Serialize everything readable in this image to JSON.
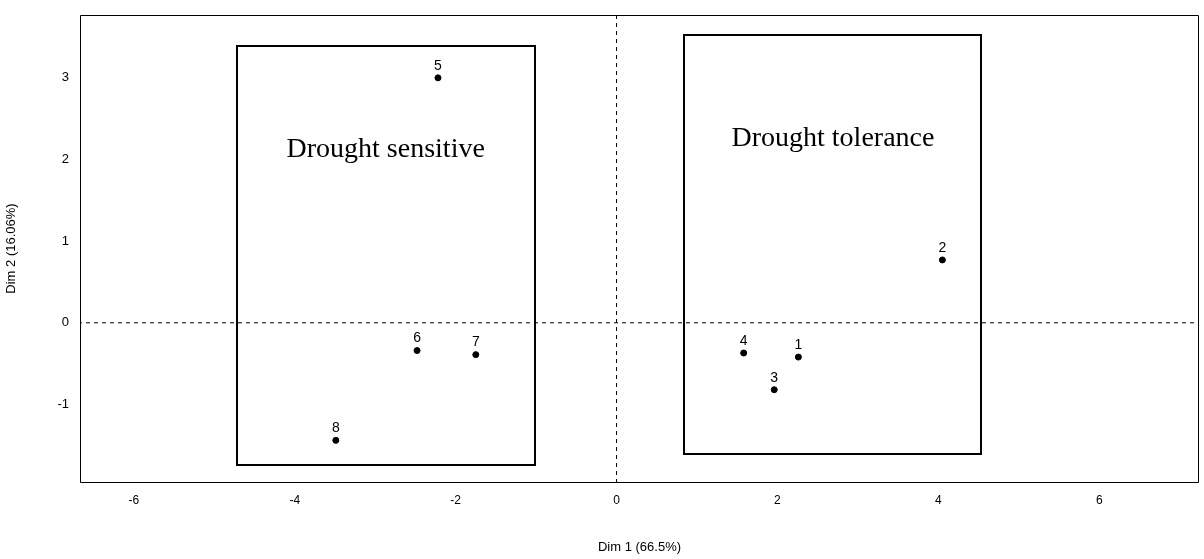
{
  "chart_data": {
    "type": "scatter",
    "xlabel": "Dim 1 (66.5%)",
    "ylabel": "Dim 2 (16.06%)",
    "series": [
      {
        "name": "1",
        "color": "#000000",
        "x": [
          2.26
        ],
        "values": [
          -0.42
        ]
      },
      {
        "name": "2",
        "color": "#000000",
        "x": [
          4.05
        ],
        "values": [
          0.77
        ]
      },
      {
        "name": "3",
        "color": "#000000",
        "x": [
          1.96
        ],
        "values": [
          -0.82
        ]
      },
      {
        "name": "4",
        "color": "#000000",
        "x": [
          1.58
        ],
        "values": [
          -0.37
        ]
      },
      {
        "name": "5",
        "color": "#000000",
        "x": [
          -2.22
        ],
        "values": [
          3.0
        ]
      },
      {
        "name": "6",
        "color": "#000000",
        "x": [
          -2.48
        ],
        "values": [
          -0.34
        ]
      },
      {
        "name": "7",
        "color": "#000000",
        "x": [
          -1.75
        ],
        "values": [
          -0.39
        ]
      },
      {
        "name": "8",
        "color": "#000000",
        "x": [
          -3.49
        ],
        "values": [
          -1.44
        ]
      }
    ],
    "marker": "circle",
    "xlim": [
      -6.67,
      7.24
    ],
    "xticks": [
      -6,
      -4,
      -2,
      0,
      2,
      4,
      6
    ],
    "ylim": [
      -1.95,
      3.77
    ],
    "yticks": [
      -1,
      0,
      1,
      2,
      3
    ],
    "ref_lines": [
      {
        "axis": "x",
        "value": 0,
        "line_style": "dashed"
      },
      {
        "axis": "y",
        "value": 0,
        "line_style": "dashed"
      }
    ],
    "annotations": [
      "Drought sensitive",
      "Drought tolerance"
    ]
  }
}
